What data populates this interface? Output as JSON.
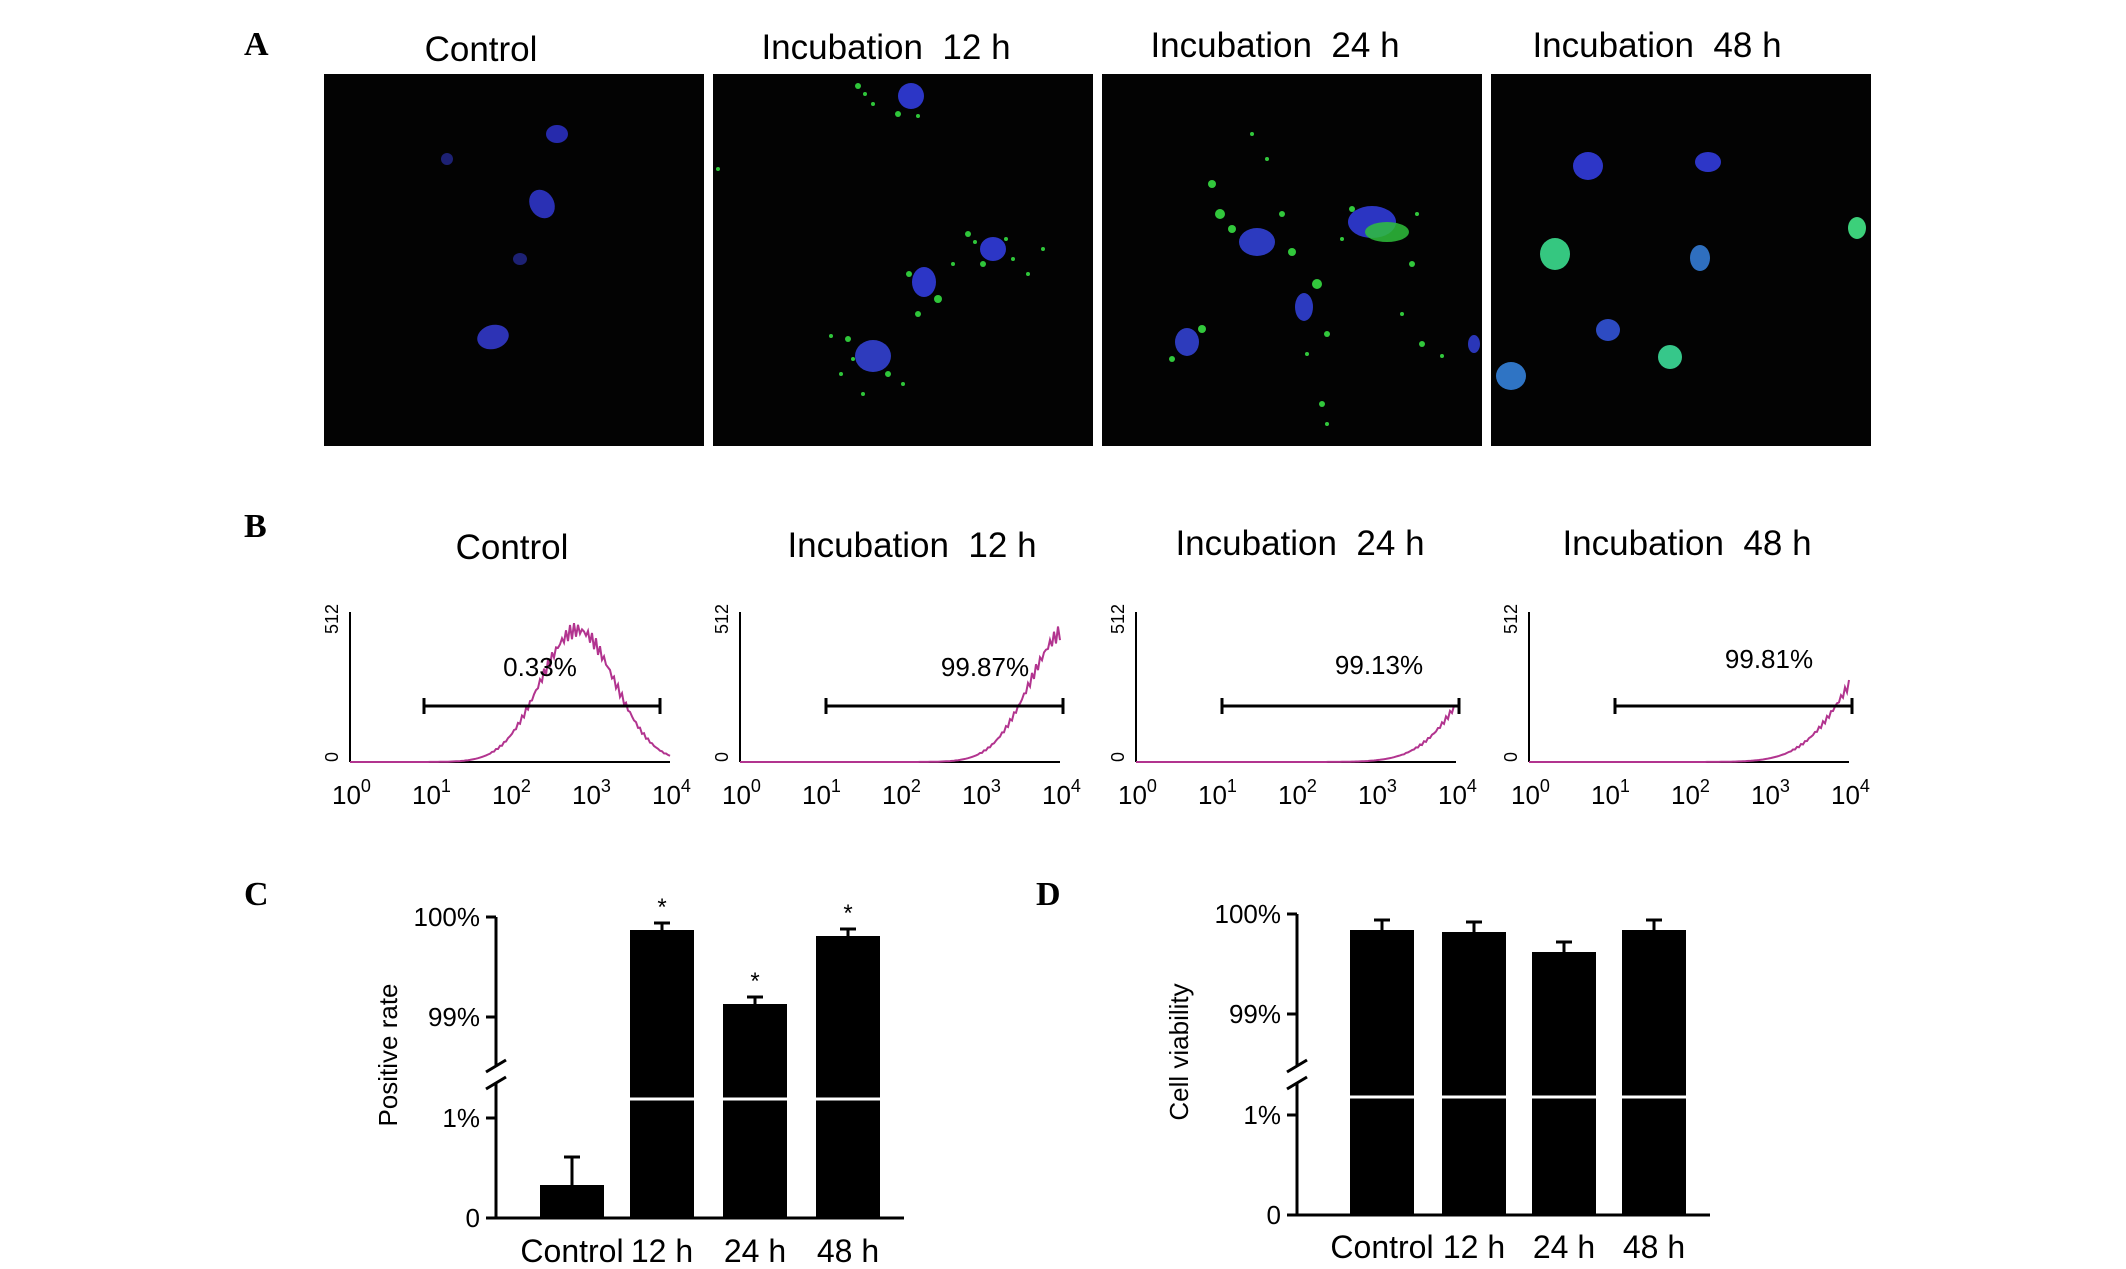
{
  "panel_labels": {
    "a": "A",
    "b": "B",
    "c": "C",
    "d": "D"
  },
  "panel_a": {
    "titles": [
      "Control",
      "Incubation  12 h",
      "Incubation  24 h",
      "Incubation  48 h"
    ]
  },
  "panel_b": {
    "titles": [
      "Control",
      "Incubation  12 h",
      "Incubation  24 h",
      "Incubation  48 h"
    ],
    "y_tick_top": "512",
    "y_tick_bottom": "0",
    "x_tick_base": "10",
    "x_tick_exponents": [
      "0",
      "1",
      "2",
      "3",
      "4"
    ],
    "percentages": [
      "0.33%",
      "99.87%",
      "99.13%",
      "99.81%"
    ],
    "line_color": "#b2348f"
  },
  "panel_c": {
    "ylabel": "Positive rate",
    "y_ticks": [
      "100%",
      "99%",
      "1%",
      "0"
    ],
    "categories": [
      "Control",
      "12 h",
      "24 h",
      "48 h"
    ],
    "star": "*"
  },
  "panel_d": {
    "ylabel": "Cell viability",
    "y_ticks": [
      "100%",
      "99%",
      "1%",
      "0"
    ],
    "categories": [
      "Control",
      "12 h",
      "24 h",
      "48 h"
    ]
  },
  "chart_data": [
    {
      "type": "bar",
      "panel": "C",
      "categories": [
        "Control",
        "12 h",
        "24 h",
        "48 h"
      ],
      "values": [
        0.33,
        99.87,
        99.13,
        99.81
      ],
      "errors": [
        0.28,
        0.07,
        0.07,
        0.07
      ],
      "significant": [
        false,
        true,
        true,
        true
      ],
      "ylabel": "Positive rate",
      "y_axis": "broken",
      "ylim_lower": [
        0,
        1
      ],
      "ylim_upper": [
        99,
        100
      ]
    },
    {
      "type": "bar",
      "panel": "D",
      "categories": [
        "Control",
        "12 h",
        "24 h",
        "48 h"
      ],
      "values": [
        99.84,
        99.82,
        99.62,
        99.84
      ],
      "errors": [
        0.1,
        0.1,
        0.1,
        0.1
      ],
      "ylabel": "Cell viability",
      "y_axis": "broken",
      "ylim_lower": [
        0,
        1
      ],
      "ylim_upper": [
        99,
        100
      ]
    }
  ]
}
